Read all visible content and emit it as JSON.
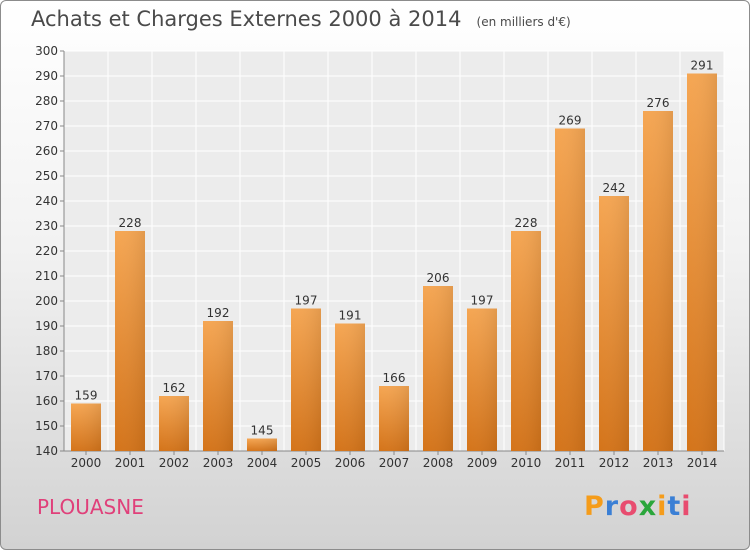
{
  "header": {
    "title": "Achats et Charges Externes 2000 à 2014",
    "units": "(en milliers d'€)"
  },
  "commune": "PLOUASNE",
  "logo": {
    "text": "Proxiti",
    "colors": [
      "#f59c1a",
      "#3a7fd5",
      "#e84c6f",
      "#2aa63b",
      "#f59c1a",
      "#3a7fd5",
      "#e84c6f"
    ]
  },
  "chart_data": {
    "type": "bar",
    "categories": [
      "2000",
      "2001",
      "2002",
      "2003",
      "2004",
      "2005",
      "2006",
      "2007",
      "2008",
      "2009",
      "2010",
      "2011",
      "2012",
      "2013",
      "2014"
    ],
    "values": [
      159,
      228,
      162,
      192,
      145,
      197,
      191,
      166,
      206,
      197,
      228,
      269,
      242,
      276,
      291
    ],
    "title": "Achats et Charges Externes 2000 à 2014",
    "ylim": [
      140,
      300
    ],
    "yticks": [
      140,
      150,
      160,
      170,
      180,
      190,
      200,
      210,
      220,
      230,
      240,
      250,
      260,
      270,
      280,
      290,
      300
    ],
    "grid": true,
    "bar_color": "#f0963c"
  }
}
